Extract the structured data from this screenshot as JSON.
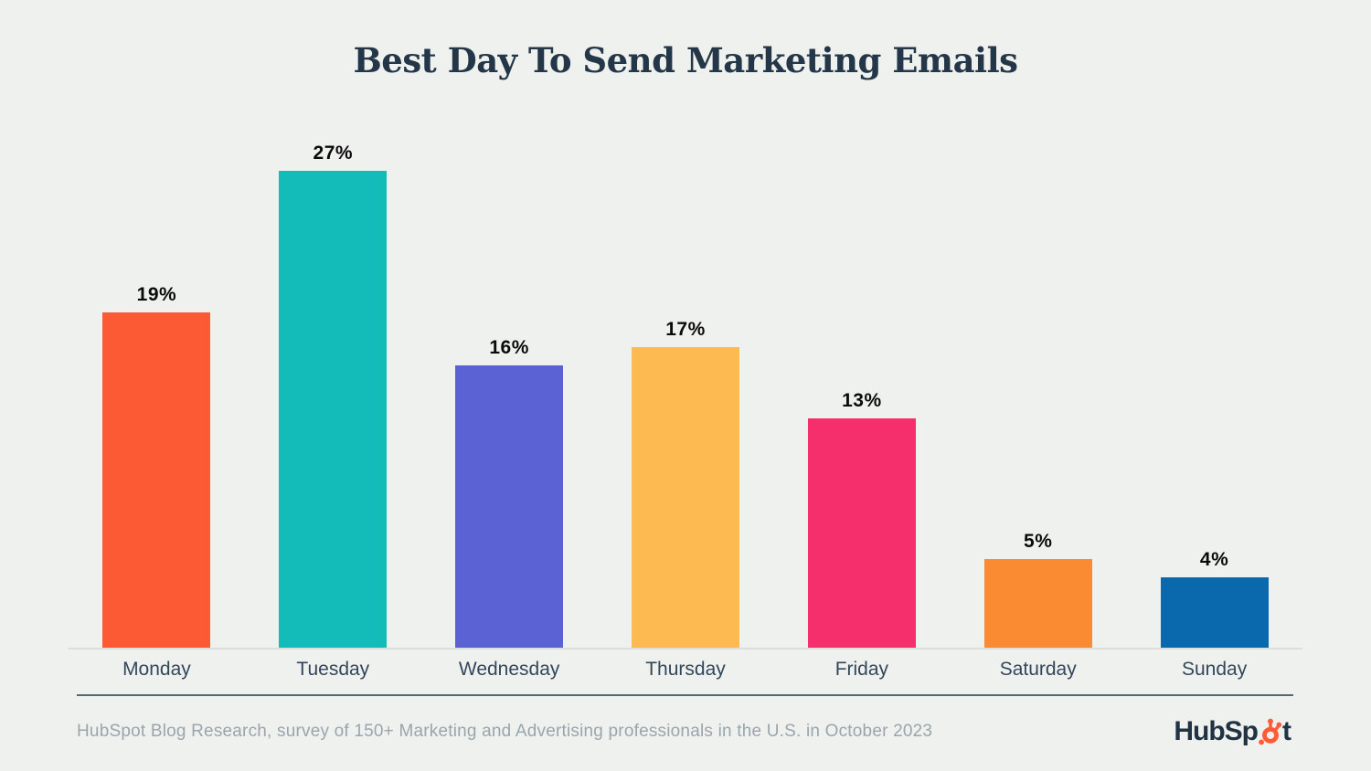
{
  "page": {
    "background_color": "#EFF1EF"
  },
  "title": "Best Day To Send Marketing Emails",
  "chart_data": {
    "type": "bar",
    "title": "Best Day To Send Marketing Emails",
    "categories": [
      "Monday",
      "Tuesday",
      "Wednesday",
      "Thursday",
      "Friday",
      "Saturday",
      "Sunday"
    ],
    "values": [
      19,
      27,
      16,
      17,
      13,
      5,
      4
    ],
    "value_labels": [
      "19%",
      "27%",
      "16%",
      "17%",
      "13%",
      "5%",
      "4%"
    ],
    "unit": "percent",
    "colors": [
      "#FB5A35",
      "#14BCB9",
      "#5B62D3",
      "#FCBA50",
      "#F52E6C",
      "#FB8B33",
      "#0A68AC"
    ],
    "ylim": [
      0,
      28
    ],
    "grid": false,
    "legend": false,
    "value_label_position": "above-bar",
    "axis_line_color": "#DBDEDC",
    "category_label_color": "#33475B",
    "value_label_color": "#0B0B0B",
    "title_color": "#243748"
  },
  "footer": {
    "source_text": "HubSpot Blog Research, survey of 150+ Marketing and Advertising professionals in the U.S. in October 2023",
    "source_text_color": "#9AA5AC",
    "divider_color": "#5A656F",
    "logo": {
      "name": "HubSpot",
      "prefix": "HubSp",
      "suffix": "t",
      "text_color": "#213343",
      "sprocket_color": "#FF5C35"
    }
  }
}
